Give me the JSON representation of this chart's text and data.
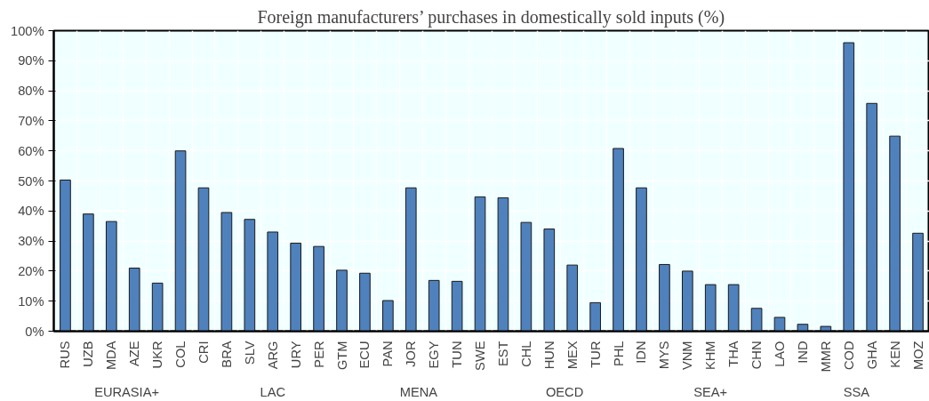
{
  "chart_data": {
    "type": "bar",
    "title": "Foreign manufacturers’ purchases in domestically sold inputs (%)",
    "categories": [
      "RUS",
      "UZB",
      "MDA",
      "AZE",
      "UKR",
      "COL",
      "CRI",
      "BRA",
      "SLV",
      "ARG",
      "URY",
      "PER",
      "GTM",
      "ECU",
      "PAN",
      "JOR",
      "EGY",
      "TUN",
      "SWE",
      "EST",
      "CHL",
      "HUN",
      "MEX",
      "TUR",
      "PHL",
      "IDN",
      "MYS",
      "VNM",
      "KHM",
      "THA",
      "CHN",
      "LAO",
      "IND",
      "MMR",
      "COD",
      "GHA",
      "KEN",
      "MOZ"
    ],
    "values": [
      50.3,
      39,
      36.5,
      21,
      16,
      60,
      47.7,
      39.5,
      37.2,
      33,
      29.3,
      28.2,
      20.3,
      19.3,
      10.2,
      47.7,
      16.9,
      16.6,
      44.7,
      44.4,
      36.2,
      34,
      22,
      9.5,
      60.8,
      47.7,
      22.2,
      20,
      15.5,
      15.5,
      7.6,
      4.6,
      2.3,
      1.6,
      96,
      75.8,
      64.9,
      32.6
    ],
    "color": "#4f81bd",
    "ylim": [
      0,
      100
    ],
    "yticks": [
      {
        "value": 0,
        "label": "0%"
      },
      {
        "value": 10,
        "label": "10%"
      },
      {
        "value": 20,
        "label": "20%"
      },
      {
        "value": 30,
        "label": "30%"
      },
      {
        "value": 40,
        "label": "40%"
      },
      {
        "value": 50,
        "label": "50%"
      },
      {
        "value": 60,
        "label": "60%"
      },
      {
        "value": 70,
        "label": "70%"
      },
      {
        "value": 80,
        "label": "80%"
      },
      {
        "value": 90,
        "label": "90%"
      },
      {
        "value": 100,
        "label": "100%"
      }
    ],
    "grid": true,
    "annotations": [
      "EURASIA+",
      "LAC",
      "MENA",
      "OECD",
      "SEA+",
      "SSA"
    ]
  }
}
